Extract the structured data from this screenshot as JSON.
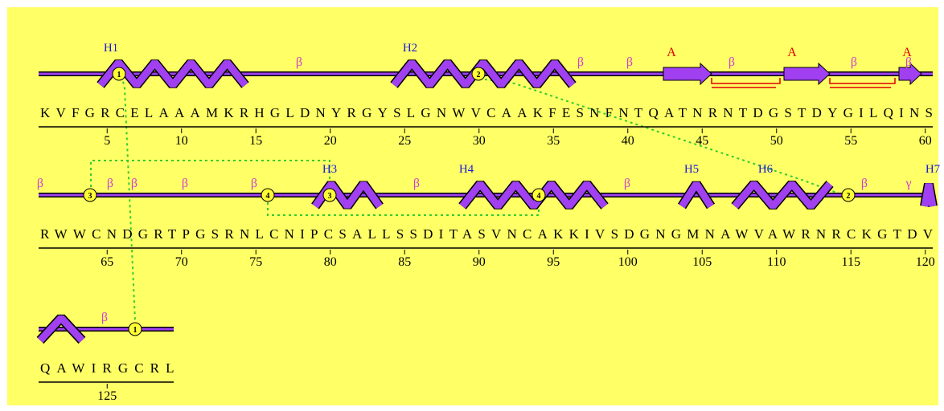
{
  "rows": [
    {
      "sequence": "KVFGRCELAAAMKRHGLDNYRGYSLGNWVCAAKFESNFNTQATNRNTDGSTDYGILQINS",
      "numbers": [
        5,
        10,
        15,
        20,
        25,
        30,
        35,
        40,
        45,
        50,
        55,
        60
      ],
      "helices": [
        "H1",
        "H2"
      ],
      "strands": [
        "A",
        "A",
        "A"
      ],
      "beta": [
        "β",
        "β",
        "β",
        "β",
        "β",
        "β"
      ],
      "bonds": [
        "1",
        "2"
      ]
    },
    {
      "sequence": "RWWCNDGRTPGSRNLCNIPCSALLSSDITASVNCAKKIVSDGNGMNAWVAWRNRCKGTDV",
      "numbers": [
        65,
        70,
        75,
        80,
        85,
        90,
        95,
        100,
        105,
        110,
        115,
        120
      ],
      "helices": [
        "H3",
        "H4",
        "H5",
        "H6",
        "H7"
      ],
      "beta": [
        "β",
        "β",
        "β",
        "β",
        "β",
        "β",
        "β",
        "β"
      ],
      "gamma": [
        "γ"
      ],
      "bonds": [
        "3",
        "4",
        "3",
        "4",
        "2"
      ]
    },
    {
      "sequence": "QAWIRGCRL",
      "numbers": [
        125
      ],
      "beta": [
        "β"
      ],
      "bonds": [
        "1"
      ]
    }
  ]
}
